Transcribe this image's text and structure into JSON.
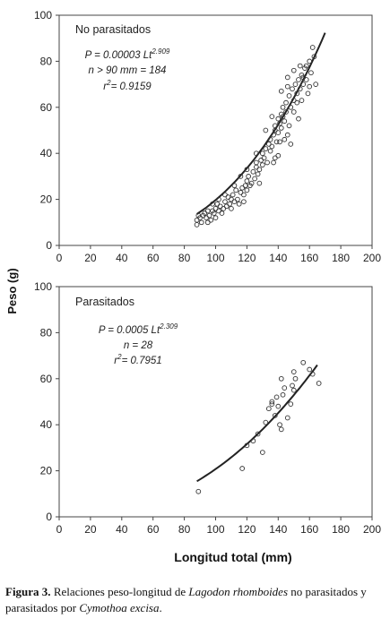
{
  "chart_data": [
    {
      "type": "scatter",
      "title": "No parasitados",
      "equation": {
        "main": "P = 0.00003 Lt",
        "exp": "2.909"
      },
      "n_text": "n > 90 mm = 184",
      "r2_text": {
        "prefix": "r",
        "sup": "2",
        "rest": "= 0.9159"
      },
      "xlabel": "",
      "ylabel": "Peso (g)",
      "xlim": [
        0,
        200
      ],
      "ylim": [
        0,
        100
      ],
      "xticks": [
        0,
        20,
        40,
        60,
        80,
        100,
        120,
        140,
        160,
        180,
        200
      ],
      "yticks": [
        0,
        20,
        40,
        60,
        80,
        100
      ],
      "curve": {
        "a": 3e-05,
        "b": 2.909,
        "x_range": [
          88,
          170
        ]
      },
      "series": [
        {
          "marker": "open-circle",
          "points": [
            [
              88,
              9
            ],
            [
              88,
              11
            ],
            [
              89,
              13
            ],
            [
              90,
              12
            ],
            [
              91,
              10
            ],
            [
              92,
              13
            ],
            [
              93,
              14
            ],
            [
              94,
              12
            ],
            [
              95,
              15
            ],
            [
              96,
              13
            ],
            [
              97,
              11
            ],
            [
              98,
              15
            ],
            [
              99,
              14
            ],
            [
              100,
              16
            ],
            [
              100,
              12
            ],
            [
              101,
              18
            ],
            [
              102,
              15
            ],
            [
              103,
              17
            ],
            [
              104,
              14
            ],
            [
              105,
              16
            ],
            [
              106,
              19
            ],
            [
              107,
              17
            ],
            [
              108,
              21
            ],
            [
              109,
              18
            ],
            [
              110,
              20
            ],
            [
              110,
              16
            ],
            [
              111,
              22
            ],
            [
              112,
              19
            ],
            [
              113,
              24
            ],
            [
              114,
              20
            ],
            [
              115,
              18
            ],
            [
              116,
              23
            ],
            [
              117,
              25
            ],
            [
              118,
              22
            ],
            [
              118,
              19
            ],
            [
              119,
              26
            ],
            [
              120,
              28
            ],
            [
              120,
              24
            ],
            [
              121,
              30
            ],
            [
              122,
              26
            ],
            [
              123,
              27
            ],
            [
              124,
              32
            ],
            [
              125,
              29
            ],
            [
              126,
              34
            ],
            [
              126,
              36
            ],
            [
              127,
              31
            ],
            [
              128,
              33
            ],
            [
              129,
              37
            ],
            [
              130,
              35
            ],
            [
              130,
              40
            ],
            [
              131,
              38
            ],
            [
              132,
              42
            ],
            [
              133,
              36
            ],
            [
              134,
              44
            ],
            [
              135,
              41
            ],
            [
              135,
              46
            ],
            [
              136,
              43
            ],
            [
              137,
              48
            ],
            [
              138,
              50
            ],
            [
              138,
              52
            ],
            [
              139,
              45
            ],
            [
              140,
              55
            ],
            [
              140,
              49
            ],
            [
              141,
              53
            ],
            [
              142,
              57
            ],
            [
              142,
              51
            ],
            [
              143,
              60
            ],
            [
              143,
              56
            ],
            [
              144,
              54
            ],
            [
              145,
              58
            ],
            [
              145,
              62
            ],
            [
              146,
              48
            ],
            [
              147,
              65
            ],
            [
              147,
              52
            ],
            [
              148,
              60
            ],
            [
              149,
              68
            ],
            [
              150,
              63
            ],
            [
              150,
              58
            ],
            [
              151,
              70
            ],
            [
              152,
              66
            ],
            [
              153,
              72
            ],
            [
              153,
              55
            ],
            [
              154,
              68
            ],
            [
              155,
              74
            ],
            [
              155,
              63
            ],
            [
              156,
              70
            ],
            [
              157,
              77
            ],
            [
              158,
              72
            ],
            [
              159,
              66
            ],
            [
              160,
              80
            ],
            [
              160,
              69
            ],
            [
              161,
              75
            ],
            [
              162,
              86
            ],
            [
              163,
              82
            ],
            [
              164,
              70
            ],
            [
              158,
              78
            ],
            [
              152,
              62
            ],
            [
              148,
              44
            ],
            [
              136,
              56
            ],
            [
              138,
              38
            ],
            [
              132,
              50
            ],
            [
              126,
              40
            ],
            [
              128,
              27
            ],
            [
              120,
              33
            ],
            [
              116,
              30
            ],
            [
              112,
              26
            ],
            [
              106,
              22
            ],
            [
              102,
              20
            ],
            [
              98,
              18
            ],
            [
              95,
              10
            ],
            [
              140,
              39
            ],
            [
              142,
              67
            ],
            [
              144,
              46
            ],
            [
              146,
              73
            ],
            [
              150,
              76
            ],
            [
              154,
              78
            ],
            [
              156,
              73
            ],
            [
              146,
              69
            ],
            [
              141,
              45
            ],
            [
              137,
              36
            ]
          ]
        }
      ]
    },
    {
      "type": "scatter",
      "title": "Parasitados",
      "equation": {
        "main": "P = 0.0005 Lt",
        "exp": "2.309"
      },
      "n_text": "n = 28",
      "r2_text": {
        "prefix": "r",
        "sup": "2",
        "rest": "= 0.7951"
      },
      "xlabel": "Longitud total (mm)",
      "ylabel": "",
      "xlim": [
        0,
        200
      ],
      "ylim": [
        0,
        100
      ],
      "xticks": [
        0,
        20,
        40,
        60,
        80,
        100,
        120,
        140,
        160,
        180,
        200
      ],
      "yticks": [
        0,
        20,
        40,
        60,
        80,
        100
      ],
      "curve": {
        "a": 0.0005,
        "b": 2.309,
        "x_range": [
          88,
          165
        ]
      },
      "series": [
        {
          "marker": "open-circle",
          "points": [
            [
              89,
              11
            ],
            [
              117,
              21
            ],
            [
              120,
              31
            ],
            [
              124,
              33
            ],
            [
              127,
              36
            ],
            [
              130,
              28
            ],
            [
              132,
              41
            ],
            [
              134,
              47
            ],
            [
              136,
              49
            ],
            [
              136,
              50
            ],
            [
              138,
              44
            ],
            [
              139,
              52
            ],
            [
              140,
              48
            ],
            [
              141,
              40
            ],
            [
              142,
              38
            ],
            [
              142,
              60
            ],
            [
              143,
              53
            ],
            [
              144,
              56
            ],
            [
              146,
              43
            ],
            [
              148,
              49
            ],
            [
              149,
              57
            ],
            [
              150,
              55
            ],
            [
              150,
              63
            ],
            [
              151,
              60
            ],
            [
              156,
              67
            ],
            [
              160,
              64
            ],
            [
              162,
              62
            ],
            [
              166,
              58
            ]
          ]
        }
      ]
    }
  ],
  "caption": {
    "label": "Figura 3.",
    "t1": " Relaciones peso-longitud de ",
    "species1": "Lagodon rhomboides",
    "t2": " no parasitados y parasitados por ",
    "species2": "Cymothoa excisa",
    "t3": "."
  }
}
